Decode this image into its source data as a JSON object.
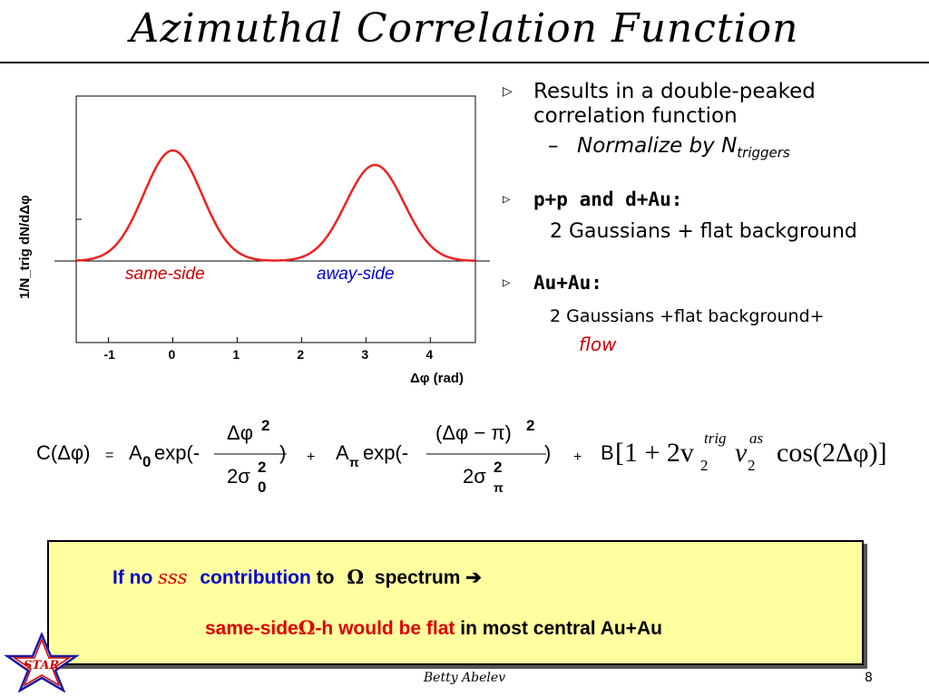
{
  "title": "Azimuthal Correlation Function",
  "chart_data": {
    "type": "line",
    "ylabel": "1/N_trig dN/dΔφ",
    "xlabel": "Δφ (rad)",
    "x_ticks": [
      "-1",
      "0",
      "1",
      "2",
      "3",
      "4"
    ],
    "xlim": [
      -1.5,
      4.7
    ],
    "annotations": [
      "same-side",
      "away-side"
    ],
    "peaks": [
      {
        "center": 0,
        "label": "same-side"
      },
      {
        "center": 3.14,
        "label": "away-side"
      }
    ]
  },
  "bullets": {
    "b1_line1": "Results in a double-peaked",
    "b1_line2": "correlation function",
    "b1_sub": "Normalize by N",
    "b1_sub_sub": "triggers",
    "b2": "p+p and d+Au:",
    "b2_sub": "2 Gaussians + flat background",
    "b3": "Au+Au:",
    "b3_sub": "2 Gaussians +flat background+",
    "b3_flow": "flow"
  },
  "formula": {
    "lhs": "C(Δφ)",
    "eq": "=",
    "a0": "A",
    "a0_sub": "0",
    "exp1": "exp(-",
    "num1": "Δφ",
    "num1_sup": "2",
    "den1": "2σ",
    "den1_sup": "2",
    "den1_sub": "0",
    "close1": ")",
    "plus1": "+",
    "api": "A",
    "api_sub": "π",
    "exp2": "exp(-",
    "num2": "(Δφ − π)",
    "num2_sup": "2",
    "den2": "2σ",
    "den2_sup": "2",
    "den2_sub": "π",
    "close2": ")",
    "plus2": "+",
    "b_term": "B",
    "flow_term_a": "[1 + 2v",
    "flow_trig": "trig",
    "flow_sub1": "2",
    "flow_v": "v",
    "flow_as": "as",
    "flow_sub2": "2",
    "flow_cos": "cos(2Δφ)]"
  },
  "box": {
    "line1_a": "If no",
    "sss": "sss",
    "line1_b": "contribution",
    "line1_c": "to",
    "omega": "Ω",
    "line1_d": "spectrum",
    "arrow": "➔",
    "line2_a": "same-side",
    "line2_omega": "Ω",
    "line2_b": "-h would be flat",
    "line2_c": "in most central Au+Au"
  },
  "logo_text": "STAR",
  "footer": "Betty Abelev",
  "page_number": "8",
  "colors": {
    "curve": "#ee2222",
    "blue": "#0000cc",
    "red": "#dd0000",
    "box_bg": "#ffffa0"
  }
}
